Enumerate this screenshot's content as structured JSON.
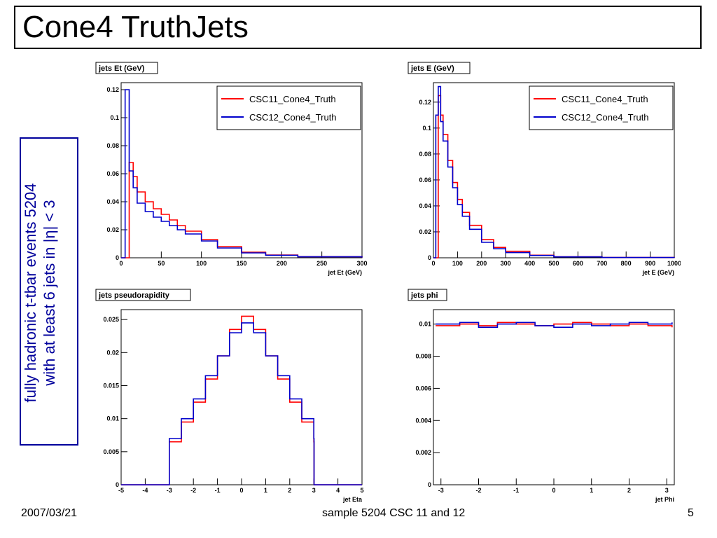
{
  "slide": {
    "title": "Cone4 TruthJets",
    "side_label_line1": "fully hadronic t-tbar events 5204",
    "side_label_line2": "with at least 6 jets in |η| < 3",
    "footer_date": "2007/03/21",
    "footer_center": "sample 5204 CSC 11 and 12",
    "page_number": "5",
    "colors": {
      "csc11": "#ff0000",
      "csc12": "#0000cc",
      "side_text": "#00009c"
    }
  },
  "chart_data": [
    {
      "type": "line",
      "title": "jets Et (GeV)",
      "xlabel": "jet Et (GeV)",
      "ylabel": "",
      "xlim": [
        0,
        300
      ],
      "ylim": [
        0,
        0.125
      ],
      "xticks": [
        "0",
        "50",
        "100",
        "150",
        "200",
        "250",
        "300"
      ],
      "xtick_values": [
        0,
        50,
        100,
        150,
        200,
        250,
        300
      ],
      "yticks": [
        "0",
        "0.02",
        "0.04",
        "0.06",
        "0.08",
        "0.1",
        "0.12"
      ],
      "ytick_values": [
        0,
        0.02,
        0.04,
        0.06,
        0.08,
        0.1,
        0.12
      ],
      "legend": "top-right",
      "grid": false,
      "series": [
        {
          "name": "CSC11_Cone4_Truth",
          "x": [
            0,
            5,
            10,
            15,
            20,
            30,
            40,
            50,
            60,
            70,
            80,
            100,
            120,
            150,
            180,
            220,
            300
          ],
          "y": [
            0,
            0,
            0.068,
            0.058,
            0.047,
            0.04,
            0.035,
            0.031,
            0.027,
            0.023,
            0.019,
            0.013,
            0.008,
            0.004,
            0.002,
            0.0008,
            0.0002
          ]
        },
        {
          "name": "CSC12_Cone4_Truth",
          "x": [
            0,
            5,
            10,
            15,
            20,
            30,
            40,
            50,
            60,
            70,
            80,
            100,
            120,
            150,
            180,
            220,
            300
          ],
          "y": [
            0,
            0.12,
            0.062,
            0.05,
            0.039,
            0.033,
            0.029,
            0.026,
            0.023,
            0.02,
            0.017,
            0.012,
            0.007,
            0.0035,
            0.0018,
            0.0007,
            0.0002
          ]
        }
      ]
    },
    {
      "type": "line",
      "title": "jets E (GeV)",
      "xlabel": "jet E (GeV)",
      "ylabel": "",
      "xlim": [
        0,
        1000
      ],
      "ylim": [
        0,
        0.135
      ],
      "xticks": [
        "0",
        "100",
        "200",
        "300",
        "400",
        "500",
        "600",
        "700",
        "800",
        "900",
        "1000"
      ],
      "xtick_values": [
        0,
        100,
        200,
        300,
        400,
        500,
        600,
        700,
        800,
        900,
        1000
      ],
      "yticks": [
        "0",
        "0.02",
        "0.04",
        "0.06",
        "0.08",
        "0.1",
        "0.12"
      ],
      "ytick_values": [
        0,
        0.02,
        0.04,
        0.06,
        0.08,
        0.1,
        0.12
      ],
      "legend": "top-right",
      "grid": false,
      "series": [
        {
          "name": "CSC11_Cone4_Truth",
          "x": [
            0,
            10,
            20,
            30,
            40,
            60,
            80,
            100,
            120,
            150,
            200,
            250,
            300,
            400,
            500,
            700,
            1000
          ],
          "y": [
            0,
            0,
            0.125,
            0.11,
            0.095,
            0.075,
            0.058,
            0.045,
            0.035,
            0.025,
            0.014,
            0.008,
            0.005,
            0.002,
            0.0008,
            0.0002,
            0.0001
          ]
        },
        {
          "name": "CSC12_Cone4_Truth",
          "x": [
            0,
            10,
            20,
            30,
            40,
            60,
            80,
            100,
            120,
            150,
            200,
            250,
            300,
            400,
            500,
            700,
            1000
          ],
          "y": [
            0,
            0.11,
            0.132,
            0.105,
            0.09,
            0.07,
            0.054,
            0.041,
            0.032,
            0.022,
            0.012,
            0.007,
            0.004,
            0.0018,
            0.0007,
            0.0002,
            0.0001
          ]
        }
      ]
    },
    {
      "type": "line",
      "title": "jets pseudorapidity",
      "xlabel": "jet Eta",
      "ylabel": "",
      "xlim": [
        -5,
        5
      ],
      "ylim": [
        0,
        0.0265
      ],
      "xticks": [
        "-5",
        "-4",
        "-3",
        "-2",
        "-1",
        "0",
        "1",
        "2",
        "3",
        "4",
        "5"
      ],
      "xtick_values": [
        -5,
        -4,
        -3,
        -2,
        -1,
        0,
        1,
        2,
        3,
        4,
        5
      ],
      "yticks": [
        "0",
        "0.005",
        "0.01",
        "0.015",
        "0.02",
        "0.025"
      ],
      "ytick_values": [
        0,
        0.005,
        0.01,
        0.015,
        0.02,
        0.025
      ],
      "legend": "none",
      "grid": false,
      "series": [
        {
          "name": "CSC11_Cone4_Truth",
          "x": [
            -5,
            -3.01,
            -3,
            -2.5,
            -2,
            -1.5,
            -1,
            -0.5,
            0,
            0.5,
            1,
            1.5,
            2,
            2.5,
            3,
            3.01,
            5
          ],
          "y": [
            0,
            0,
            0.0065,
            0.0095,
            0.0125,
            0.016,
            0.0195,
            0.0235,
            0.0255,
            0.0235,
            0.0195,
            0.016,
            0.0125,
            0.0095,
            0.0065,
            0,
            0
          ]
        },
        {
          "name": "CSC12_Cone4_Truth",
          "x": [
            -5,
            -3.01,
            -3,
            -2.5,
            -2,
            -1.5,
            -1,
            -0.5,
            0,
            0.5,
            1,
            1.5,
            2,
            2.5,
            3,
            3.01,
            5
          ],
          "y": [
            0,
            0,
            0.007,
            0.01,
            0.013,
            0.0165,
            0.0195,
            0.023,
            0.0245,
            0.023,
            0.0195,
            0.0165,
            0.013,
            0.01,
            0.007,
            0,
            0
          ]
        }
      ]
    },
    {
      "type": "line",
      "title": "jets phi",
      "xlabel": "jet Phi",
      "ylabel": "",
      "xlim": [
        -3.2,
        3.2
      ],
      "ylim": [
        0,
        0.0109
      ],
      "xticks": [
        "-3",
        "-2",
        "-1",
        "0",
        "1",
        "2",
        "3"
      ],
      "xtick_values": [
        -3,
        -2,
        -1,
        0,
        1,
        2,
        3
      ],
      "yticks": [
        "0",
        "0.002",
        "0.004",
        "0.006",
        "0.008",
        "0.01"
      ],
      "ytick_values": [
        0,
        0.002,
        0.004,
        0.006,
        0.008,
        0.01
      ],
      "legend": "none",
      "grid": false,
      "series": [
        {
          "name": "CSC11_Cone4_Truth",
          "x": [
            -3.14,
            -2.5,
            -2,
            -1.5,
            -1,
            -0.5,
            0,
            0.5,
            1,
            1.5,
            2,
            2.5,
            3.14
          ],
          "y": [
            0.0099,
            0.01,
            0.0099,
            0.0101,
            0.01,
            0.0099,
            0.01,
            0.0101,
            0.01,
            0.0099,
            0.01,
            0.0099,
            0.0098
          ]
        },
        {
          "name": "CSC12_Cone4_Truth",
          "x": [
            -3.14,
            -2.5,
            -2,
            -1.5,
            -1,
            -0.5,
            0,
            0.5,
            1,
            1.5,
            2,
            2.5,
            3.14
          ],
          "y": [
            0.01,
            0.0101,
            0.0098,
            0.01,
            0.0101,
            0.0099,
            0.0098,
            0.01,
            0.0099,
            0.01,
            0.0101,
            0.01,
            0.0101
          ]
        }
      ]
    }
  ]
}
